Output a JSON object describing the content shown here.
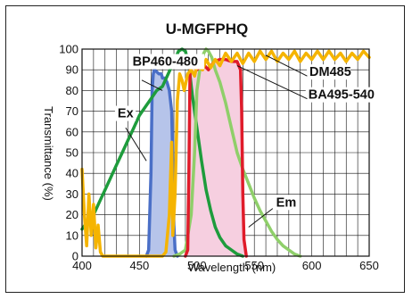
{
  "chart_data": {
    "type": "line",
    "title": "U-MGFPHQ",
    "xlabel": "Wavelength (nm)",
    "ylabel": "Transmittance (%)",
    "xlim": [
      400,
      650
    ],
    "ylim": [
      0,
      100
    ],
    "x_ticks": [
      "400",
      "450",
      "500",
      "550",
      "600",
      "650"
    ],
    "y_ticks": [
      "0",
      "10",
      "20",
      "30",
      "40",
      "50",
      "60",
      "70",
      "80",
      "90",
      "100"
    ],
    "grid": true,
    "series": [
      {
        "name": "BP460-480",
        "color": "#4a6fc7",
        "fill": "#b6c4ea",
        "points": [
          [
            456,
            0
          ],
          [
            458,
            3
          ],
          [
            460,
            40
          ],
          [
            461,
            80
          ],
          [
            462,
            88
          ],
          [
            463,
            90
          ],
          [
            465,
            89
          ],
          [
            467,
            88
          ],
          [
            469,
            88
          ],
          [
            470,
            86
          ],
          [
            472,
            86
          ],
          [
            474,
            84
          ],
          [
            476,
            80
          ],
          [
            478,
            70
          ],
          [
            479,
            45
          ],
          [
            480,
            15
          ],
          [
            481,
            3
          ],
          [
            483,
            0
          ]
        ]
      },
      {
        "name": "BA495-540",
        "color": "#e01b2a",
        "fill": "#f6cfe0",
        "points": [
          [
            490,
            0
          ],
          [
            492,
            3
          ],
          [
            493,
            40
          ],
          [
            494,
            90
          ],
          [
            496,
            92
          ],
          [
            500,
            90
          ],
          [
            505,
            93
          ],
          [
            510,
            90
          ],
          [
            515,
            94
          ],
          [
            520,
            95
          ],
          [
            525,
            95
          ],
          [
            530,
            94
          ],
          [
            535,
            94
          ],
          [
            538,
            90
          ],
          [
            539,
            70
          ],
          [
            540,
            30
          ],
          [
            541,
            8
          ],
          [
            543,
            0
          ]
        ]
      },
      {
        "name": "DM485",
        "color": "#f5b400",
        "points": [
          [
            400,
            42
          ],
          [
            402,
            20
          ],
          [
            404,
            5
          ],
          [
            406,
            30
          ],
          [
            408,
            10
          ],
          [
            410,
            25
          ],
          [
            412,
            4
          ],
          [
            414,
            15
          ],
          [
            416,
            2
          ],
          [
            418,
            0
          ],
          [
            470,
            0
          ],
          [
            473,
            2
          ],
          [
            476,
            20
          ],
          [
            478,
            55
          ],
          [
            479,
            10
          ],
          [
            481,
            30
          ],
          [
            483,
            75
          ],
          [
            485,
            88
          ],
          [
            487,
            85
          ],
          [
            489,
            80
          ],
          [
            492,
            88
          ],
          [
            495,
            90
          ],
          [
            498,
            87
          ],
          [
            500,
            92
          ],
          [
            505,
            90
          ],
          [
            508,
            95
          ],
          [
            512,
            91
          ],
          [
            516,
            95
          ],
          [
            520,
            92
          ],
          [
            525,
            98
          ],
          [
            530,
            94
          ],
          [
            535,
            98
          ],
          [
            540,
            93
          ],
          [
            545,
            98
          ],
          [
            550,
            94
          ],
          [
            555,
            99
          ],
          [
            560,
            95
          ],
          [
            565,
            99
          ],
          [
            570,
            94
          ],
          [
            575,
            98
          ],
          [
            580,
            95
          ],
          [
            585,
            99
          ],
          [
            590,
            94
          ],
          [
            595,
            98
          ],
          [
            600,
            95
          ],
          [
            605,
            99
          ],
          [
            610,
            95
          ],
          [
            615,
            99
          ],
          [
            620,
            95
          ],
          [
            625,
            98
          ],
          [
            630,
            94
          ],
          [
            635,
            98
          ],
          [
            640,
            95
          ],
          [
            645,
            99
          ],
          [
            650,
            96
          ]
        ]
      },
      {
        "name": "Ex",
        "color": "#1e9c3c",
        "points": [
          [
            400,
            13
          ],
          [
            405,
            17
          ],
          [
            410,
            20
          ],
          [
            415,
            26
          ],
          [
            420,
            32
          ],
          [
            425,
            38
          ],
          [
            430,
            44
          ],
          [
            435,
            50
          ],
          [
            440,
            56
          ],
          [
            445,
            62
          ],
          [
            450,
            68
          ],
          [
            455,
            72
          ],
          [
            460,
            76
          ],
          [
            465,
            80
          ],
          [
            470,
            82
          ],
          [
            475,
            88
          ],
          [
            480,
            94
          ],
          [
            484,
            99
          ],
          [
            487,
            100
          ],
          [
            490,
            99
          ],
          [
            493,
            92
          ],
          [
            496,
            78
          ],
          [
            500,
            62
          ],
          [
            504,
            46
          ],
          [
            508,
            32
          ],
          [
            512,
            22
          ],
          [
            516,
            14
          ],
          [
            520,
            9
          ],
          [
            525,
            5
          ],
          [
            530,
            3
          ],
          [
            535,
            1
          ],
          [
            540,
            0
          ]
        ]
      },
      {
        "name": "Em",
        "color": "#8fcf6a",
        "points": [
          [
            480,
            0
          ],
          [
            485,
            1
          ],
          [
            490,
            3
          ],
          [
            495,
            20
          ],
          [
            498,
            50
          ],
          [
            500,
            80
          ],
          [
            503,
            92
          ],
          [
            506,
            98
          ],
          [
            508,
            100
          ],
          [
            510,
            99
          ],
          [
            513,
            96
          ],
          [
            516,
            90
          ],
          [
            520,
            84
          ],
          [
            525,
            74
          ],
          [
            530,
            62
          ],
          [
            535,
            50
          ],
          [
            540,
            42
          ],
          [
            545,
            35
          ],
          [
            550,
            28
          ],
          [
            555,
            22
          ],
          [
            560,
            17
          ],
          [
            565,
            12
          ],
          [
            570,
            8
          ],
          [
            575,
            5
          ],
          [
            580,
            3
          ],
          [
            585,
            1
          ],
          [
            590,
            0
          ]
        ]
      }
    ],
    "labels": [
      {
        "text": "BP460-480",
        "x": 444,
        "y": 92
      },
      {
        "text": "DM485",
        "x": 598,
        "y": 87
      },
      {
        "text": "BA495-540",
        "x": 597,
        "y": 76
      },
      {
        "text": "Ex",
        "x": 431,
        "y": 67
      },
      {
        "text": "Em",
        "x": 569,
        "y": 24
      }
    ]
  }
}
